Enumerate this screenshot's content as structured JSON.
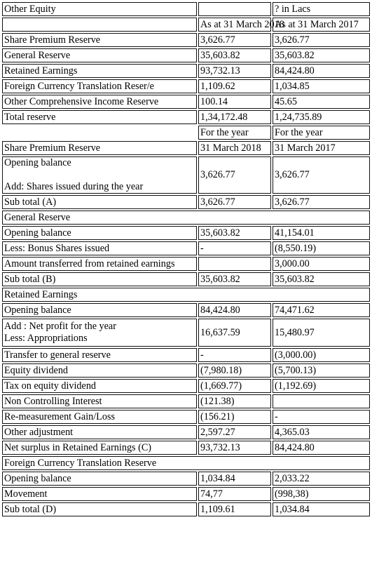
{
  "top": {
    "title": "Other Equity",
    "unit": "? in Lacs",
    "col_2018": "As at 31 March 2018",
    "col_2017": "As at 31 March 2017",
    "rows": [
      {
        "label": "Share Premium Reserve",
        "v2018": "3,626.77",
        "v2017": "3,626.77"
      },
      {
        "label": "General Reserve",
        "v2018": "35,603.82",
        "v2017": "35,603.82"
      },
      {
        "label": "Retained Earnings",
        "v2018": "93,732.13",
        "v2017": "84,424.80"
      },
      {
        "label": "Foreign Currency Translation Reser/e",
        "v2018": "1,109.62",
        "v2017": "1,034.85"
      },
      {
        "label": "Other Comprehensive Income Reserve",
        "v2018": "100.14",
        "v2017": "45.65"
      },
      {
        "label": "Total reserve",
        "v2018": "1,34,172.48",
        "v2017": "1,24,735.89"
      }
    ]
  },
  "period_header": {
    "for_year_2018": "For the year",
    "for_year_2017": "For the year",
    "year_2018": "31 March 2018",
    "year_2017": "31 March 2017"
  },
  "share_premium": {
    "title": "Share Premium Reserve",
    "opening_label": "Opening balance",
    "add_label": "Add: Shares issued during the year",
    "opening_2018": "3,626.77",
    "opening_2017": "3,626.77",
    "subtotal_label": "Sub total (A)",
    "subtotal_2018": "3,626.77",
    "subtotal_2017": "3,626.77"
  },
  "general_reserve": {
    "title": "General Reserve",
    "rows": [
      {
        "label": "Opening balance",
        "v2018": "35,603.82",
        "v2017": "41,154.01"
      },
      {
        "label": "Less: Bonus Shares issued",
        "v2018": "-",
        "v2017": "(8,550.19)"
      },
      {
        "label": "Amount transferred from retained earnings",
        "v2018": "",
        "v2017": "3,000.00"
      },
      {
        "label": "Sub total (B)",
        "v2018": "35,603.82",
        "v2017": "35,603.82"
      }
    ]
  },
  "retained_earnings": {
    "title": "Retained Earnings",
    "opening": {
      "label": "Opening balance",
      "v2018": "84,424.80",
      "v2017": "74,471.62"
    },
    "net_profit_label": "Add : Net profit for the year",
    "appropriations_label": "Less: Appropriations",
    "net_profit_2018": "16,637.59",
    "net_profit_2017": "15,480.97",
    "rows": [
      {
        "label": "Transfer to general reserve",
        "v2018": "-",
        "v2017": "(3,000.00)"
      },
      {
        "label": "Equity dividend",
        "v2018": "(7,980.18)",
        "v2017": "(5,700.13)"
      },
      {
        "label": "Tax on equity dividend",
        "v2018": "(1,669.77)",
        "v2017": "(1,192.69)"
      },
      {
        "label": "Non Controlling Interest",
        "v2018": "(121.38)",
        "v2017": ""
      },
      {
        "label": "Re-measurement Gain/Loss",
        "v2018": "(156.21)",
        "v2017": "-"
      },
      {
        "label": "Other adjustment",
        "v2018": "2,597.27",
        "v2017": "4,365.03"
      },
      {
        "label": "Net surplus in Retained Earnings (C)",
        "v2018": "93,732.13",
        "v2017": "84,424.80"
      }
    ]
  },
  "fctr": {
    "title": "Foreign Currency Translation Reserve",
    "rows": [
      {
        "label": "Opening balance",
        "v2018": "1,034.84",
        "v2017": "2,033.22"
      },
      {
        "label": "Movement",
        "v2018": "74,77",
        "v2017": "(998,38)"
      },
      {
        "label": "Sub total (D)",
        "v2018": "1,109.61",
        "v2017": "1,034.84"
      }
    ]
  }
}
